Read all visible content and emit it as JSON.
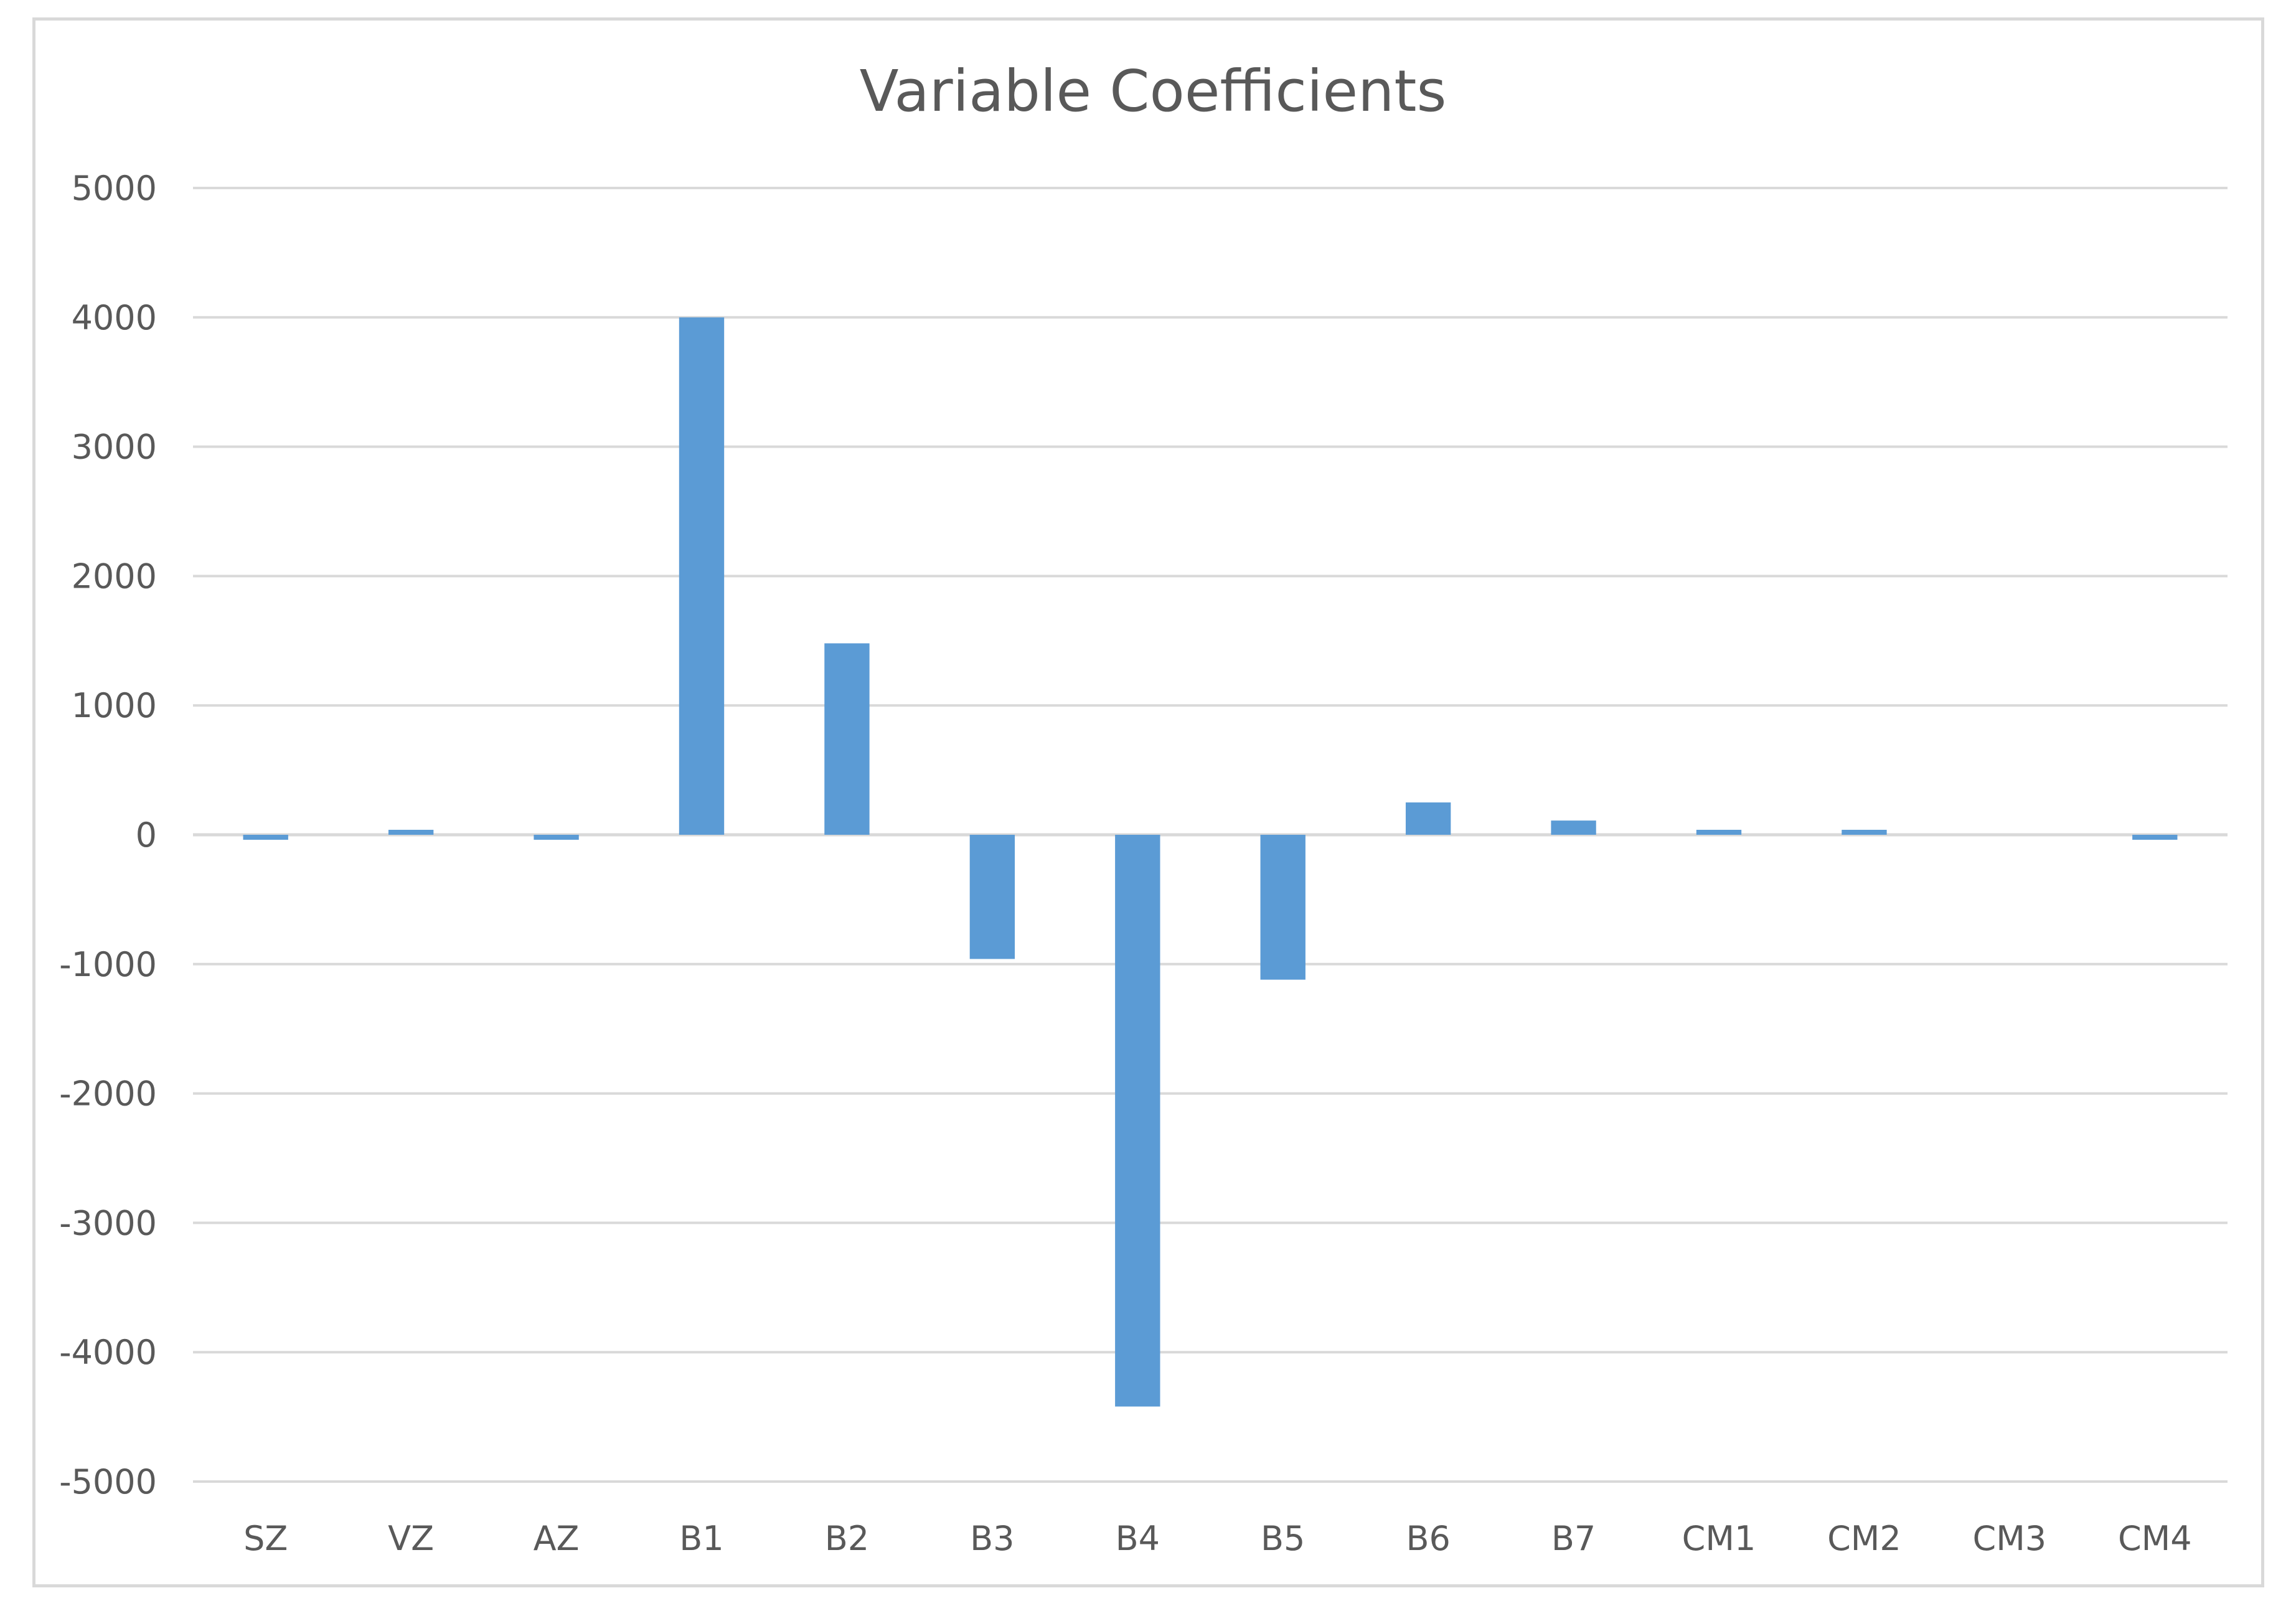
{
  "chart_data": {
    "type": "bar",
    "title": "Variable Coefficients",
    "xlabel": "",
    "ylabel": "",
    "categories": [
      "SZ",
      "VZ",
      "AZ",
      "B1",
      "B2",
      "B3",
      "B4",
      "B5",
      "B6",
      "B7",
      "CM1",
      "CM2",
      "CM3",
      "CM4"
    ],
    "values": [
      -30,
      30,
      -30,
      4000,
      1480,
      -960,
      -4420,
      -1120,
      250,
      110,
      30,
      30,
      0,
      -30
    ],
    "ylim": [
      -5000,
      5000
    ],
    "yticks": [
      5000,
      4000,
      3000,
      2000,
      1000,
      0,
      -1000,
      -2000,
      -3000,
      -4000,
      -5000
    ],
    "ytick_labels": [
      "5000",
      "4000",
      "3000",
      "2000",
      "1000",
      "0",
      "-1000",
      "-2000",
      "-3000",
      "-4000",
      "-5000"
    ],
    "grid": true,
    "legend": "none",
    "bar_color": "#5b9bd5",
    "grid_color": "#d9d9d9",
    "text_color": "#595959"
  }
}
